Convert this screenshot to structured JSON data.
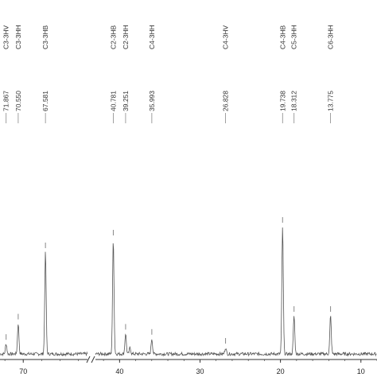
{
  "chart_data": {
    "type": "line",
    "title": "",
    "xlabel": "",
    "ylabel": "",
    "x_axis": {
      "reversed": true,
      "ticks": [
        70,
        40,
        30,
        20,
        10
      ],
      "break_between": [
        70,
        40
      ]
    },
    "peaks": [
      {
        "label": "C3-3HV",
        "shift": "71.867",
        "x": 71.867,
        "height": 0.08
      },
      {
        "label": "C3-3HH",
        "shift": "70.550",
        "x": 70.55,
        "height": 0.24
      },
      {
        "label": "C3-3HB",
        "shift": "67.581",
        "x": 67.581,
        "height": 0.8
      },
      {
        "label": "C2-3HB",
        "shift": "40.781",
        "x": 40.781,
        "height": 0.9
      },
      {
        "label": "C2-3HH",
        "shift": "39.251",
        "x": 39.251,
        "height": 0.16
      },
      {
        "label": "C4-3HH",
        "shift": "35.993",
        "x": 35.993,
        "height": 0.12
      },
      {
        "label": "C4-3HV",
        "shift": "26.828",
        "x": 26.828,
        "height": 0.05
      },
      {
        "label": "C4-3HB",
        "shift": "19.738",
        "x": 19.738,
        "height": 1.0
      },
      {
        "label": "C5-3HH",
        "shift": "18.312",
        "x": 18.312,
        "height": 0.3
      },
      {
        "label": "C6-3HH",
        "shift": "13.775",
        "x": 13.775,
        "height": 0.3
      }
    ],
    "minor_peaks": [
      {
        "x": 38.7,
        "height": 0.05
      },
      {
        "x": 74.6,
        "height": 0.18
      }
    ],
    "colors": {
      "spectrum": "#555555",
      "axis": "#333333",
      "annotation": "#888888"
    }
  }
}
